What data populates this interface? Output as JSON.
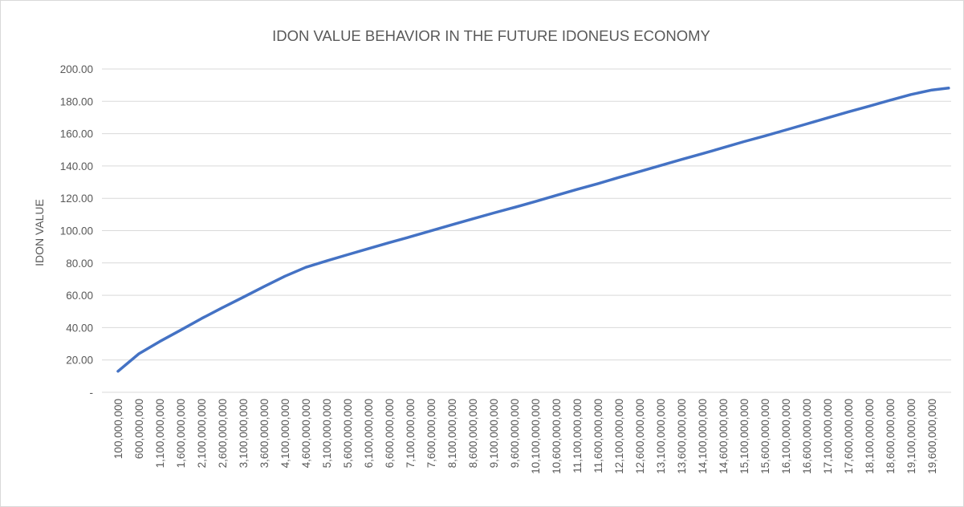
{
  "chart_data": {
    "type": "line",
    "title": "IDON VALUE BEHAVIOR IN THE FUTURE IDONEUS ECONOMY",
    "xlabel": "",
    "ylabel": "IDON VALUE",
    "ylim": [
      0,
      200
    ],
    "yticks": [
      "-",
      "20.00",
      "40.00",
      "60.00",
      "80.00",
      "100.00",
      "120.00",
      "140.00",
      "160.00",
      "180.00",
      "200.00"
    ],
    "grid": true,
    "legend": "none",
    "categories": [
      "100,000,000",
      "600,000,000",
      "1,100,000,000",
      "1,600,000,000",
      "2,100,000,000",
      "2,600,000,000",
      "3,100,000,000",
      "3,600,000,000",
      "4,100,000,000",
      "4,600,000,000",
      "5,100,000,000",
      "5,600,000,000",
      "6,100,000,000",
      "6,600,000,000",
      "7,100,000,000",
      "7,600,000,000",
      "8,100,000,000",
      "8,600,000,000",
      "9,100,000,000",
      "9,600,000,000",
      "10,100,000,000",
      "10,600,000,000",
      "11,100,000,000",
      "11,600,000,000",
      "12,100,000,000",
      "12,600,000,000",
      "13,100,000,000",
      "13,600,000,000",
      "14,100,000,000",
      "14,600,000,000",
      "15,100,000,000",
      "15,600,000,000",
      "16,100,000,000",
      "16,600,000,000",
      "17,100,000,000",
      "17,600,000,000",
      "18,100,000,000",
      "18,600,000,000",
      "19,100,000,000",
      "19,600,000,000"
    ],
    "series": [
      {
        "name": "",
        "color": "#4472c4",
        "x": [
          100000000,
          600000000,
          1100000000,
          1600000000,
          2100000000,
          2600000000,
          3100000000,
          3600000000,
          4100000000,
          4600000000,
          5100000000,
          5600000000,
          6100000000,
          6600000000,
          7100000000,
          7600000000,
          8100000000,
          8600000000,
          9100000000,
          9600000000,
          10100000000,
          10600000000,
          11100000000,
          11600000000,
          12100000000,
          12600000000,
          13100000000,
          13600000000,
          14100000000,
          14600000000,
          15100000000,
          15600000000,
          16100000000,
          16600000000,
          17100000000,
          17600000000,
          18100000000,
          18600000000,
          19100000000,
          19600000000,
          20000000000
        ],
        "values": [
          13.0,
          23.8,
          31.4,
          38.4,
          45.6,
          52.3,
          58.8,
          65.4,
          71.8,
          77.3,
          81.3,
          85.1,
          88.9,
          92.6,
          96.2,
          99.9,
          103.6,
          107.3,
          110.9,
          114.4,
          118.0,
          121.8,
          125.5,
          129.1,
          132.9,
          136.6,
          140.3,
          144.0,
          147.6,
          151.3,
          155.1,
          158.6,
          162.3,
          166.0,
          169.8,
          173.5,
          177.0,
          180.7,
          184.2,
          187.0,
          188.2
        ]
      }
    ]
  }
}
